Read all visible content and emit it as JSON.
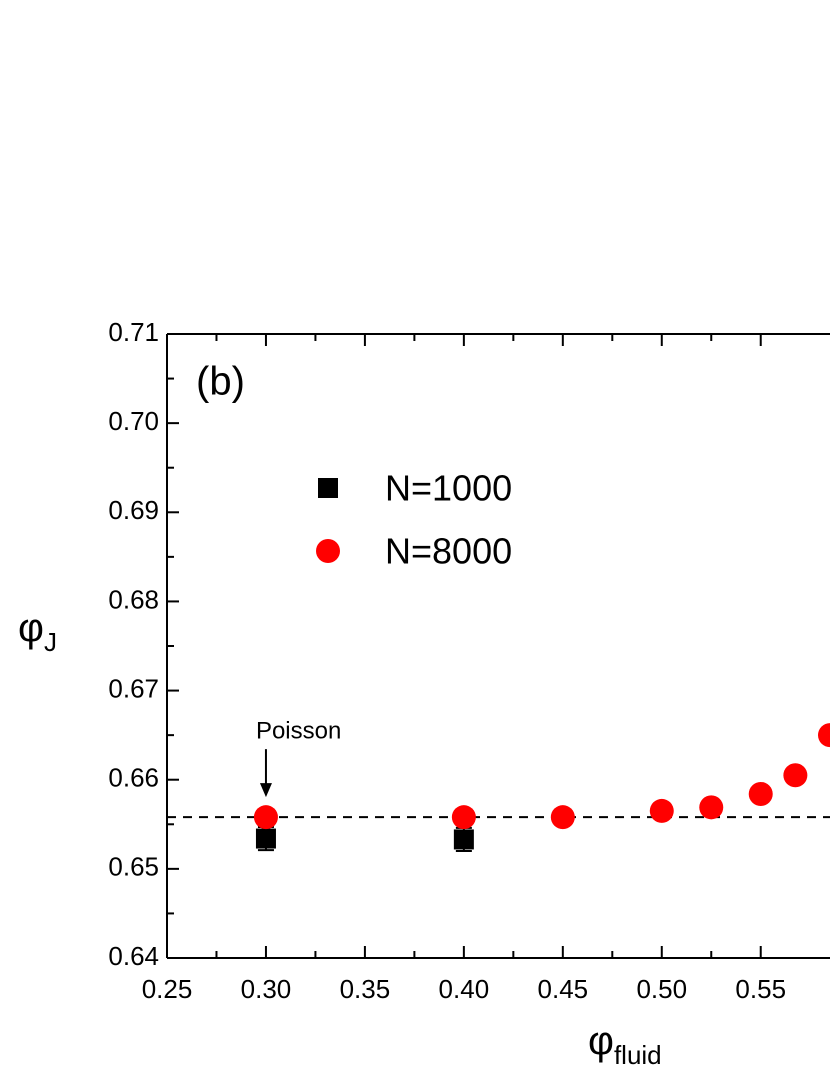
{
  "chart_data": {
    "type": "scatter",
    "panel_label": "(b)",
    "xlabel": "φ",
    "xlabel_sub": "fluid",
    "ylabel": "φ",
    "ylabel_sub": "J",
    "xlim": [
      0.25,
      0.585
    ],
    "ylim": [
      0.64,
      0.71
    ],
    "xticks": [
      0.25,
      {
        "value": 0.3,
        "label": "0.30"
      },
      0.35,
      {
        "value": 0.4,
        "label": "0.40"
      },
      0.45,
      {
        "value": 0.5,
        "label": "0.50"
      },
      0.55
    ],
    "yticks": [
      0.64,
      0.65,
      0.66,
      0.67,
      0.68,
      0.69,
      {
        "value": 0.7,
        "label": "0.70"
      },
      0.71
    ],
    "reference_line": 0.6558,
    "annotation": {
      "text": "Poisson",
      "x": 0.3
    },
    "series": [
      {
        "name": "N=1000",
        "color": "#000000",
        "marker": "square",
        "x": [
          0.3,
          0.4
        ],
        "values": [
          0.6534,
          0.6533
        ],
        "errors": [
          0.0013,
          0.0013
        ]
      },
      {
        "name": "N=8000",
        "color": "#ff0000",
        "marker": "circle",
        "x": [
          0.3,
          0.4,
          0.45,
          0.5,
          0.525,
          0.55,
          0.5675,
          0.585
        ],
        "values": [
          0.6558,
          0.6558,
          0.6558,
          0.6565,
          0.6569,
          0.6584,
          0.6605,
          0.665
        ]
      }
    ]
  }
}
